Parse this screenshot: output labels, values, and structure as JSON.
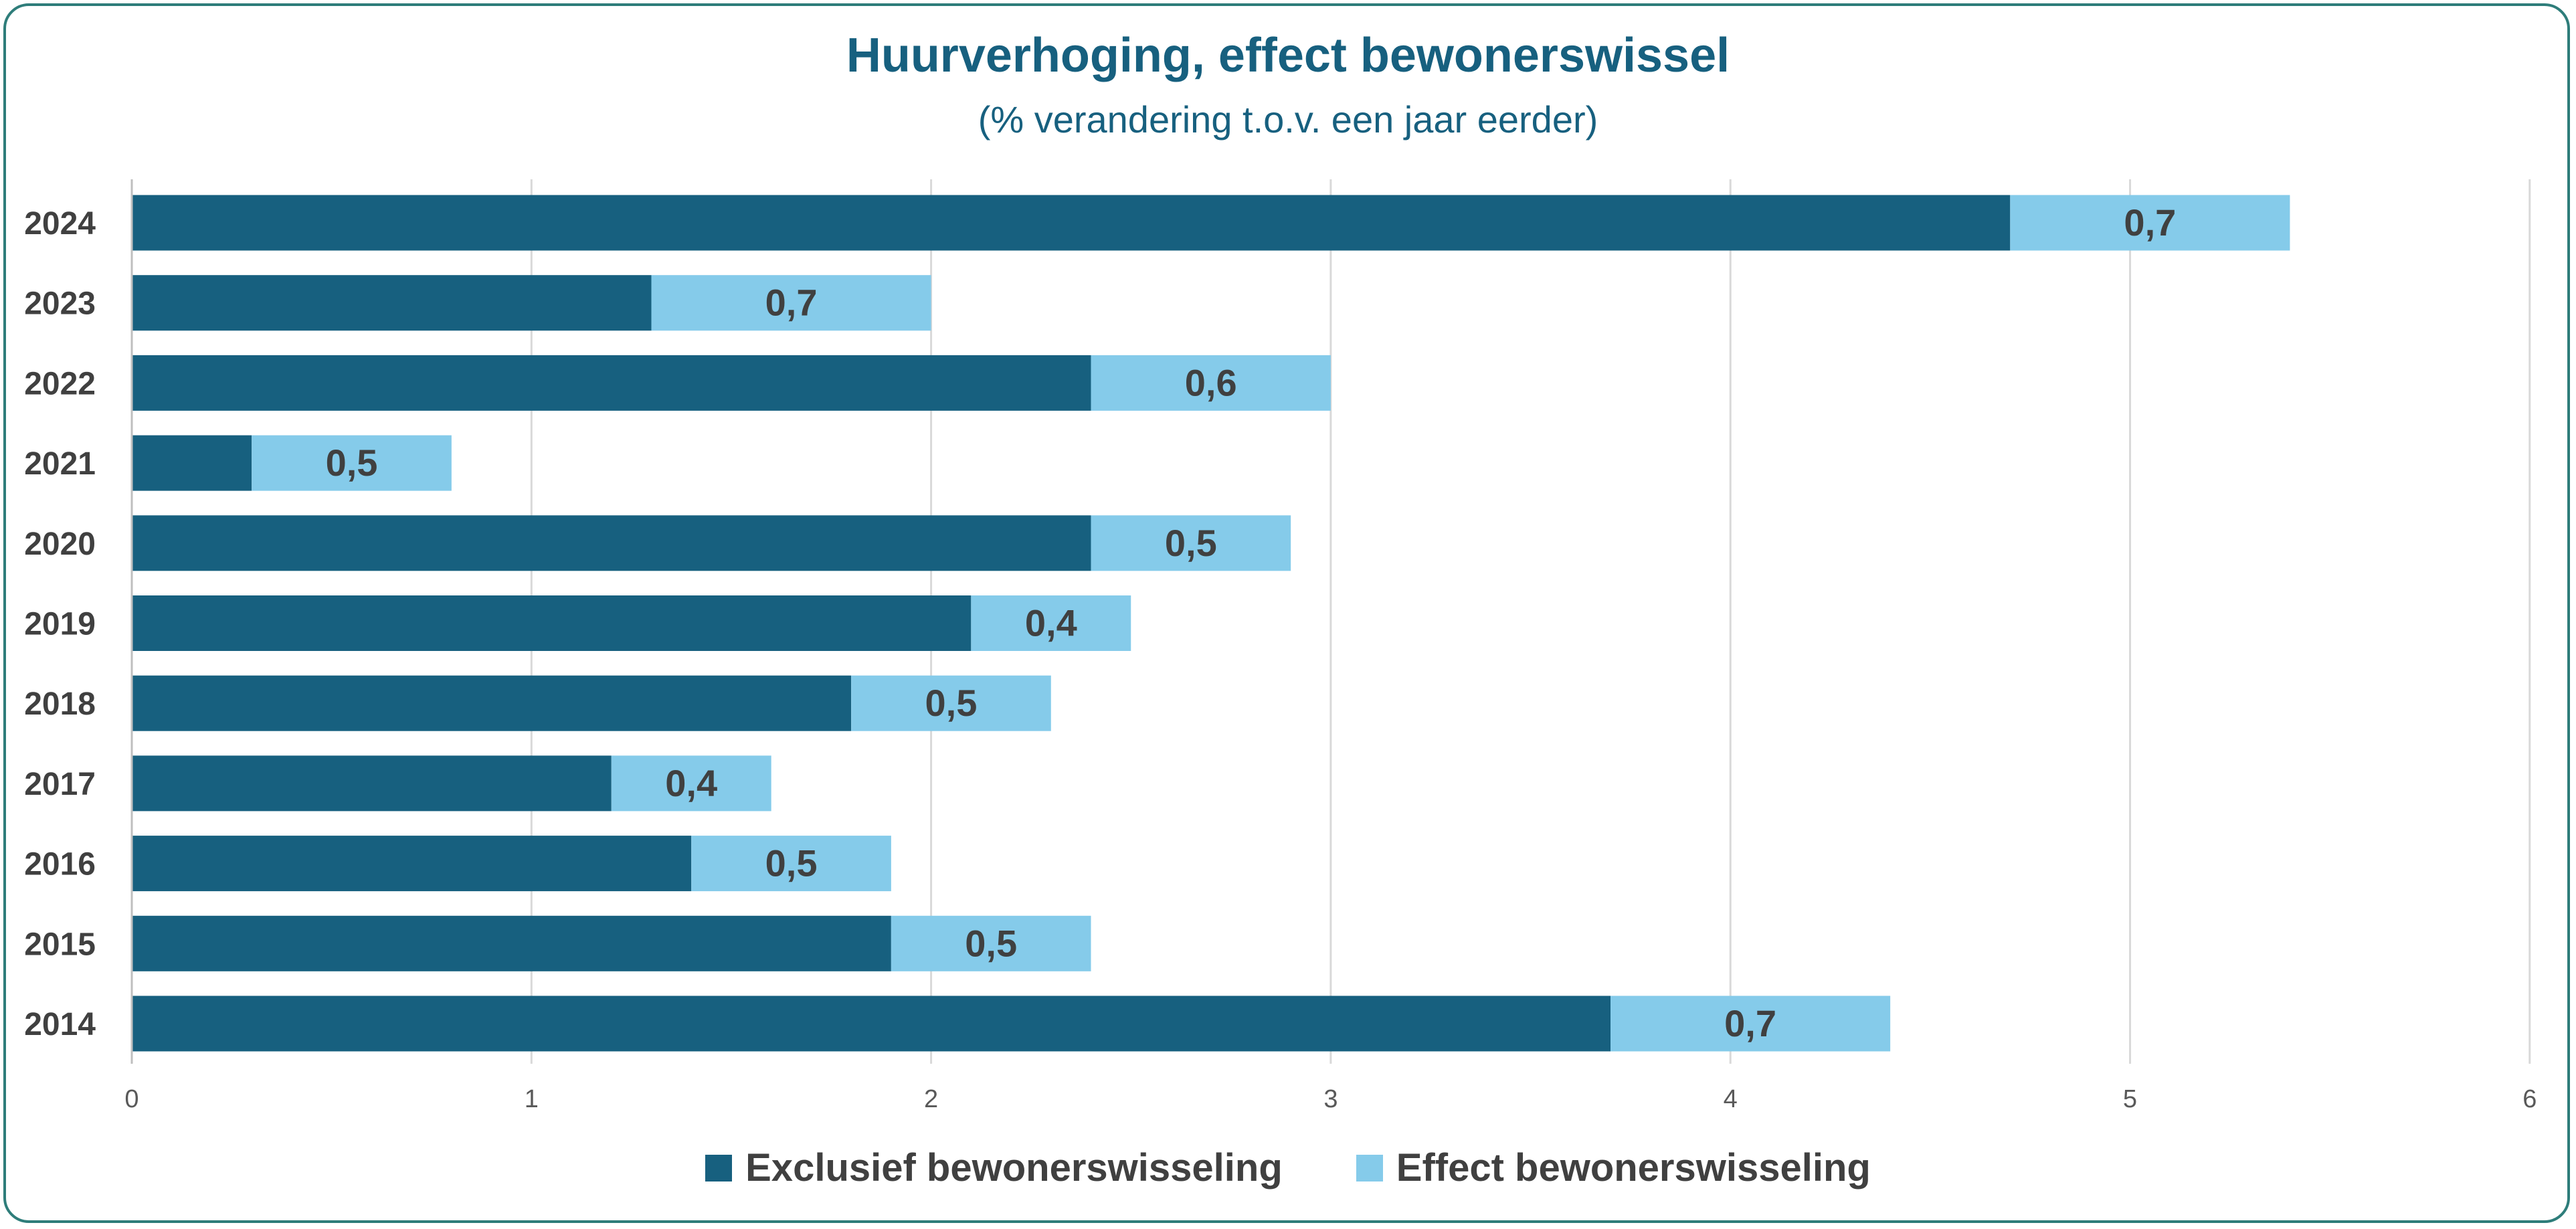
{
  "chart_data": {
    "type": "bar",
    "orientation": "horizontal",
    "stacked": true,
    "title": "Huurverhoging, effect bewonerswissel",
    "subtitle": "(% verandering t.o.v. een jaar eerder)",
    "categories": [
      "2024",
      "2023",
      "2022",
      "2021",
      "2020",
      "2019",
      "2018",
      "2017",
      "2016",
      "2015",
      "2014"
    ],
    "series": [
      {
        "name": "Exclusief bewonerswisseling",
        "color": "#17607f",
        "values": [
          4.7,
          1.3,
          2.4,
          0.3,
          2.4,
          2.1,
          1.8,
          1.2,
          1.4,
          1.9,
          3.7
        ]
      },
      {
        "name": "Effect bewonerswisseling",
        "color": "#85cbea",
        "values": [
          0.7,
          0.7,
          0.6,
          0.5,
          0.5,
          0.4,
          0.5,
          0.4,
          0.5,
          0.5,
          0.7
        ],
        "data_labels": [
          "0,7",
          "0,7",
          "0,6",
          "0,5",
          "0,5",
          "0,4",
          "0,5",
          "0,4",
          "0,5",
          "0,5",
          "0,7"
        ]
      }
    ],
    "xlim": [
      0,
      6
    ],
    "xticks": [
      "0",
      "1",
      "2",
      "3",
      "4",
      "5",
      "6"
    ],
    "grid": "vertical",
    "legend": "bottom"
  }
}
